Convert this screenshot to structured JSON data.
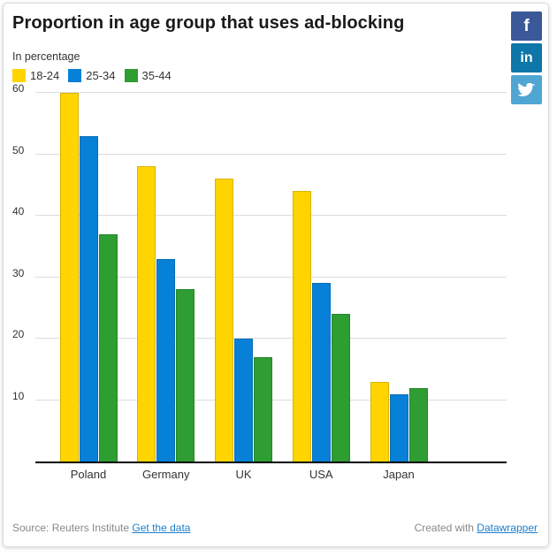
{
  "header": {
    "title": "Proportion in age group that uses ad-blocking",
    "subtitle": "In percentage"
  },
  "chart_data": {
    "type": "bar",
    "grouped": true,
    "title": "Proportion in age group that uses ad-blocking",
    "subtitle": "In percentage",
    "categories": [
      "Poland",
      "Germany",
      "UK",
      "USA",
      "Japan"
    ],
    "series": [
      {
        "name": "18-24",
        "color": "#ffd400",
        "values": [
          60,
          48,
          46,
          44,
          13
        ]
      },
      {
        "name": "25-34",
        "color": "#0780d8",
        "values": [
          53,
          33,
          20,
          29,
          11
        ]
      },
      {
        "name": "35-44",
        "color": "#2e9d32",
        "values": [
          37,
          28,
          17,
          24,
          12
        ]
      }
    ],
    "ylabel": "In percentage",
    "xlabel": "",
    "ylim": [
      0,
      60
    ],
    "yticks": [
      10,
      20,
      30,
      40,
      50,
      60
    ],
    "grid": "horizontal",
    "legend_position": "top-left"
  },
  "colors": {
    "grid": "#dddddd",
    "baseline": "#000000",
    "axis_text": "#333333",
    "title_text": "#1a1a1a",
    "footer_text": "#888888",
    "link": "#1d7ec9",
    "facebook": "#3b5998",
    "linkedin": "#0e76a8",
    "twitter": "#4fa6d3"
  },
  "social": {
    "facebook_glyph": "f",
    "linkedin_glyph": "in",
    "twitter_icon": "twitter-bird"
  },
  "footer": {
    "source_prefix": "Source: Reuters Institute ",
    "source_link_label": "Get the data",
    "created_prefix": "Created with ",
    "created_link_label": "Datawrapper"
  }
}
